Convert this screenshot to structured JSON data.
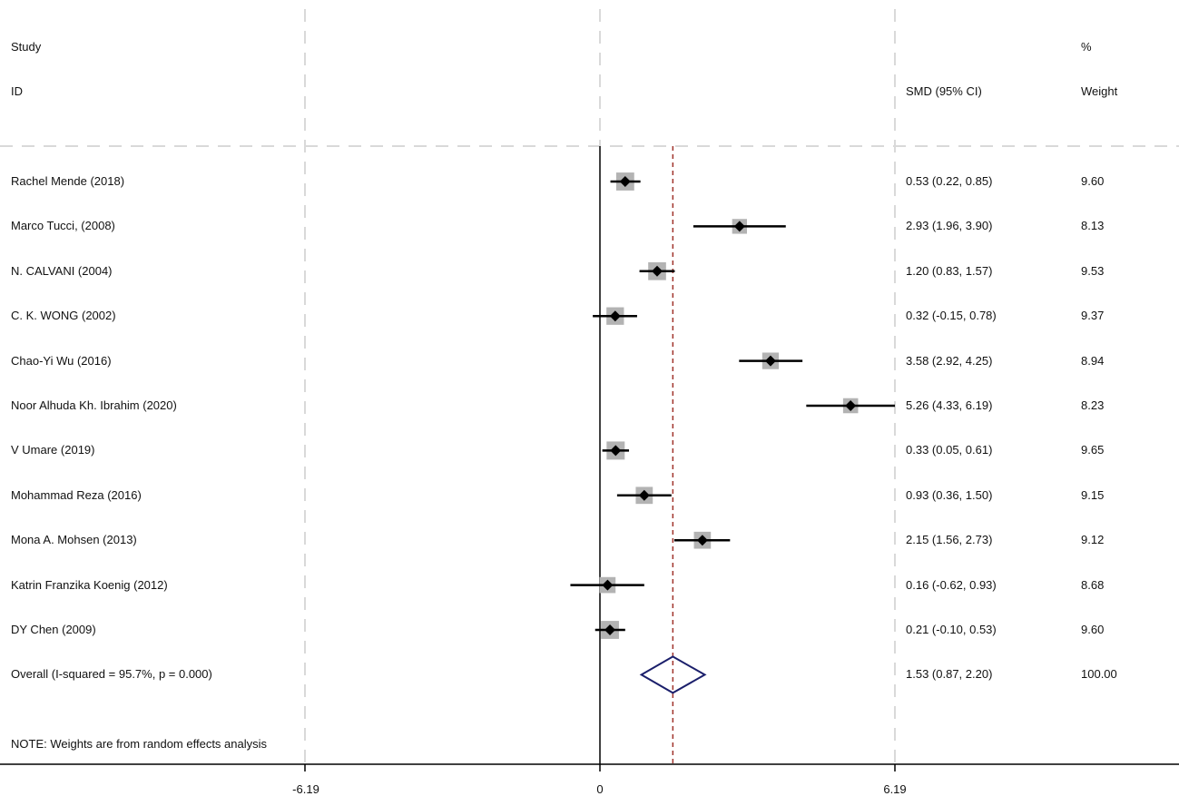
{
  "header": {
    "study_label": "Study",
    "id_label": "ID",
    "smd_label": "SMD (95% CI)",
    "pct_label": "%",
    "weight_label": "Weight"
  },
  "note": "NOTE: Weights are from random effects analysis",
  "colors": {
    "ci_line": "#000000",
    "box": "#b3b3b3",
    "diamond": "#1b1f6b",
    "ref_line": "#a0342c",
    "grid": "#d9d9d9"
  },
  "chart_data": {
    "type": "forest",
    "xlim": [
      -6.19,
      6.19
    ],
    "xticks": [
      "-6.19",
      "0",
      "6.19"
    ],
    "reference_line": 1.53,
    "studies": [
      {
        "id": "Rachel Mende (2018)",
        "smd": 0.53,
        "lo": 0.22,
        "hi": 0.85,
        "ci_text": "0.53 (0.22, 0.85)",
        "weight": "9.60"
      },
      {
        "id": "Marco Tucci, (2008)",
        "smd": 2.93,
        "lo": 1.96,
        "hi": 3.9,
        "ci_text": "2.93 (1.96, 3.90)",
        "weight": "8.13"
      },
      {
        "id": "N. CALVANI (2004)",
        "smd": 1.2,
        "lo": 0.83,
        "hi": 1.57,
        "ci_text": "1.20 (0.83, 1.57)",
        "weight": "9.53"
      },
      {
        "id": "C. K. WONG (2002)",
        "smd": 0.32,
        "lo": -0.15,
        "hi": 0.78,
        "ci_text": "0.32 (-0.15, 0.78)",
        "weight": "9.37"
      },
      {
        "id": "Chao-Yi Wu (2016)",
        "smd": 3.58,
        "lo": 2.92,
        "hi": 4.25,
        "ci_text": "3.58 (2.92, 4.25)",
        "weight": "8.94"
      },
      {
        "id": "Noor Alhuda Kh. Ibrahim (2020)",
        "smd": 5.26,
        "lo": 4.33,
        "hi": 6.19,
        "ci_text": "5.26 (4.33, 6.19)",
        "weight": "8.23"
      },
      {
        "id": "V Umare (2019)",
        "smd": 0.33,
        "lo": 0.05,
        "hi": 0.61,
        "ci_text": "0.33 (0.05, 0.61)",
        "weight": "9.65"
      },
      {
        "id": "Mohammad Reza (2016)",
        "smd": 0.93,
        "lo": 0.36,
        "hi": 1.5,
        "ci_text": "0.93 (0.36, 1.50)",
        "weight": "9.15"
      },
      {
        "id": "Mona A. Mohsen (2013)",
        "smd": 2.15,
        "lo": 1.56,
        "hi": 2.73,
        "ci_text": "2.15 (1.56, 2.73)",
        "weight": "9.12"
      },
      {
        "id": "Katrin Franzika Koenig (2012)",
        "smd": 0.16,
        "lo": -0.62,
        "hi": 0.93,
        "ci_text": "0.16 (-0.62, 0.93)",
        "weight": "8.68"
      },
      {
        "id": "DY Chen (2009)",
        "smd": 0.21,
        "lo": -0.1,
        "hi": 0.53,
        "ci_text": "0.21 (-0.10, 0.53)",
        "weight": "9.60"
      }
    ],
    "overall": {
      "id": "Overall  (I-squared = 95.7%, p = 0.000)",
      "smd": 1.53,
      "lo": 0.87,
      "hi": 2.2,
      "ci_text": "1.53 (0.87, 2.20)",
      "weight": "100.00"
    }
  }
}
